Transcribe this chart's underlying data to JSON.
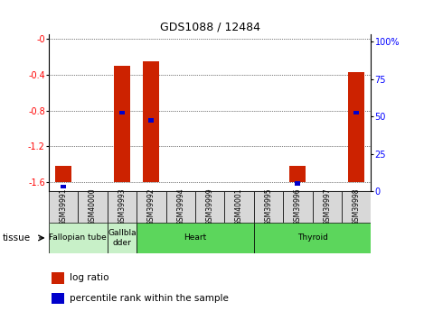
{
  "title": "GDS1088 / 12484",
  "samples": [
    "GSM39991",
    "GSM40000",
    "GSM39993",
    "GSM39992",
    "GSM39994",
    "GSM39999",
    "GSM40001",
    "GSM39995",
    "GSM39996",
    "GSM39997",
    "GSM39998"
  ],
  "log_ratio_bottom": [
    -1.6,
    0.0,
    -1.6,
    -1.6,
    0.0,
    0.0,
    0.0,
    0.0,
    -1.6,
    0.0,
    -1.6
  ],
  "log_ratio_top": [
    -1.42,
    0.0,
    -0.3,
    -0.25,
    0.0,
    0.0,
    0.0,
    0.0,
    -1.42,
    0.0,
    -0.37
  ],
  "percentile_ranks": [
    3,
    0,
    50,
    45,
    0,
    0,
    0,
    0,
    5,
    0,
    50
  ],
  "tissues": [
    {
      "label": "Fallopian tube",
      "start": 0,
      "end": 2,
      "color": "#c8f0c8"
    },
    {
      "label": "Gallbla\ndder",
      "start": 2,
      "end": 3,
      "color": "#c8f0c8"
    },
    {
      "label": "Heart",
      "start": 3,
      "end": 7,
      "color": "#5cd65c"
    },
    {
      "label": "Thyroid",
      "start": 7,
      "end": 11,
      "color": "#5cd65c"
    }
  ],
  "ylim_left": [
    -1.7,
    0.05
  ],
  "ylim_right": [
    0,
    105
  ],
  "yticks_left": [
    0.0,
    -0.4,
    -0.8,
    -1.2,
    -1.6
  ],
  "yticks_right": [
    0,
    25,
    50,
    75,
    100
  ],
  "bar_color": "#cc2200",
  "percentile_color": "#0000cc",
  "bar_width": 0.55
}
